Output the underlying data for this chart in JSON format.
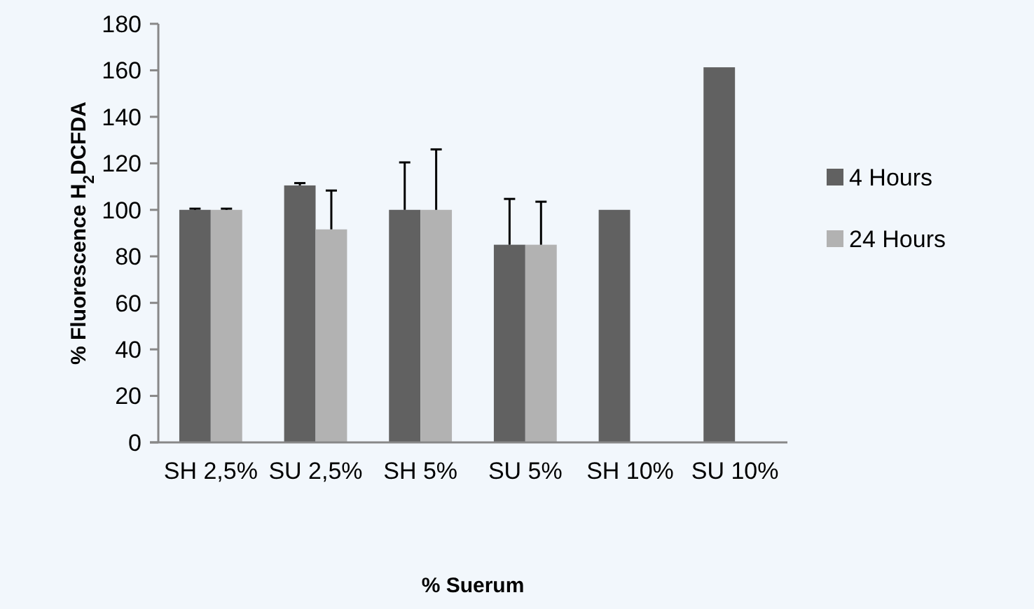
{
  "chart_data": {
    "type": "bar",
    "xlabel": "% Suerum",
    "ylabel": "% Fluorescence H$_{2}$DCFDA",
    "categories": [
      "SH 2,5%",
      "SU 2,5%",
      "SH 5%",
      "SU 5%",
      "SH 10%",
      "SU 10%"
    ],
    "series": [
      {
        "name": "4 Hours",
        "color": "#616161",
        "values": [
          100,
          110.5,
          100,
          85,
          100,
          161.3
        ],
        "errors": [
          [
            100,
            100.5
          ],
          [
            110.5,
            111.5
          ],
          [
            100,
            120.4
          ],
          [
            85,
            104.7
          ],
          null,
          null
        ]
      },
      {
        "name": "24 Hours",
        "color": "#b2b2b2",
        "values": [
          100,
          91.6,
          100,
          85,
          null,
          null
        ],
        "errors": [
          [
            100,
            100.5
          ],
          [
            91.6,
            108.3
          ],
          [
            100,
            126
          ],
          [
            85,
            103.5
          ],
          null,
          null
        ]
      }
    ],
    "ylim": [
      0,
      180
    ],
    "yticks": [
      0,
      20,
      40,
      60,
      80,
      100,
      120,
      140,
      160,
      180
    ],
    "grid": false,
    "legend": "right"
  }
}
